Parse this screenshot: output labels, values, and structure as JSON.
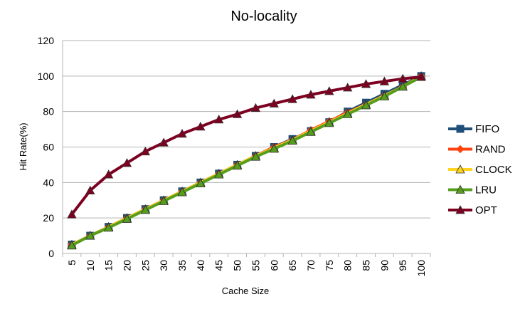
{
  "chart_data": {
    "type": "line",
    "title": "No-locality",
    "xlabel": "Cache Size",
    "ylabel": "Hit Rate(%)",
    "ylim": [
      0,
      120
    ],
    "yticks": [
      0,
      20,
      40,
      60,
      80,
      100,
      120
    ],
    "grid": "horizontal",
    "legend_position": "right",
    "categories": [
      "5",
      "10",
      "15",
      "20",
      "25",
      "30",
      "35",
      "40",
      "45",
      "50",
      "55",
      "60",
      "65",
      "70",
      "75",
      "80",
      "85",
      "90",
      "95",
      "100"
    ],
    "series": [
      {
        "name": "FIFO",
        "color": "#1f4e79",
        "marker": "square",
        "values": [
          5,
          10,
          15,
          20,
          25,
          30,
          35,
          40,
          45,
          50,
          55,
          60,
          64.5,
          69,
          74,
          80,
          85,
          90,
          95,
          100
        ]
      },
      {
        "name": "RAND",
        "color": "#ff420e",
        "marker": "diamond",
        "values": [
          5,
          10,
          15,
          20,
          25,
          30,
          35,
          40,
          45,
          50,
          55,
          60,
          64,
          69.5,
          74.5,
          79.5,
          84,
          89,
          94,
          100
        ]
      },
      {
        "name": "CLOCK",
        "color": "#ffd320",
        "marker": "triangle",
        "values": [
          5,
          10,
          15,
          20,
          25,
          30,
          35,
          40,
          45,
          50,
          55,
          59.5,
          64,
          69,
          74,
          79,
          84,
          89,
          94,
          100
        ]
      },
      {
        "name": "LRU",
        "color": "#579d1c",
        "marker": "triangle",
        "values": [
          4.5,
          10,
          14.5,
          19.5,
          24.5,
          29.5,
          34.5,
          39.5,
          44.5,
          49.5,
          54.5,
          59,
          63.5,
          68.5,
          73.5,
          78.5,
          83.5,
          88.5,
          94,
          99.5
        ]
      },
      {
        "name": "OPT",
        "color": "#7e0021",
        "marker": "triangle",
        "values": [
          22,
          35.5,
          44.5,
          51,
          57.5,
          62.5,
          67.5,
          71.5,
          75.5,
          78.5,
          82,
          84.5,
          87,
          89.5,
          91.5,
          93.5,
          95.5,
          97,
          98.5,
          99.5
        ]
      }
    ]
  }
}
